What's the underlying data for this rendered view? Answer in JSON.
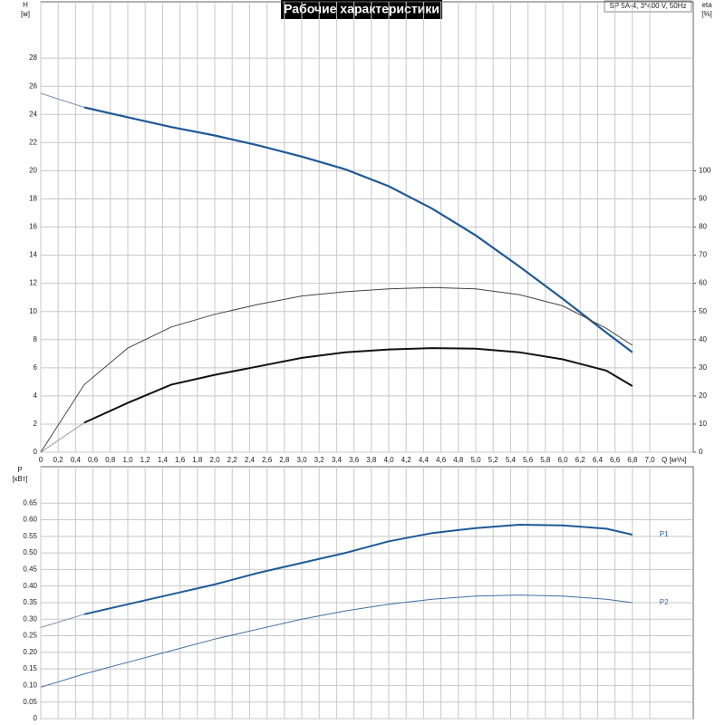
{
  "chart_data": [
    {
      "type": "line",
      "title": "Рабочие характеристики",
      "subtitle": "SP 5A-4, 3*400 V, 50Hz",
      "ylabel": "H",
      "ylabel_unit": "[м]",
      "y2label": "eta",
      "y2label_unit": "[%]",
      "xlabel": "Q [м³/ч]",
      "xlim": [
        0,
        7.5
      ],
      "ylim": [
        0,
        32
      ],
      "y2lim": [
        0,
        160
      ],
      "grid": true,
      "xticks": [
        0,
        {
          "value": 0.2,
          "label": "0,2"
        },
        {
          "value": 0.4,
          "label": "0,4"
        },
        {
          "value": 0.6,
          "label": "0,6"
        },
        {
          "value": 0.8,
          "label": "0,8"
        },
        {
          "value": 1.0,
          "label": "1,0"
        },
        {
          "value": 1.2,
          "label": "1,2"
        },
        {
          "value": 1.4,
          "label": "1,4"
        },
        {
          "value": 1.6,
          "label": "1,6"
        },
        {
          "value": 1.8,
          "label": "1,8"
        },
        {
          "value": 2.0,
          "label": "2,0"
        },
        {
          "value": 2.2,
          "label": "2,2"
        },
        {
          "value": 2.4,
          "label": "2,4"
        },
        {
          "value": 2.6,
          "label": "2,6"
        },
        {
          "value": 2.8,
          "label": "2,8"
        },
        {
          "value": 3.0,
          "label": "3,0"
        },
        {
          "value": 3.2,
          "label": "3,2"
        },
        {
          "value": 3.4,
          "label": "3,4"
        },
        {
          "value": 3.6,
          "label": "3,6"
        },
        {
          "value": 3.8,
          "label": "3,8"
        },
        {
          "value": 4.0,
          "label": "4,0"
        },
        {
          "value": 4.2,
          "label": "4,2"
        },
        {
          "value": 4.4,
          "label": "4,4"
        },
        {
          "value": 4.6,
          "label": "4,6"
        },
        {
          "value": 4.8,
          "label": "4,8"
        },
        {
          "value": 5.0,
          "label": "5,0"
        },
        {
          "value": 5.2,
          "label": "5,2"
        },
        {
          "value": 5.4,
          "label": "5,4"
        },
        {
          "value": 5.6,
          "label": "5,6"
        },
        {
          "value": 5.8,
          "label": "5,8"
        },
        {
          "value": 6.0,
          "label": "6,0"
        },
        {
          "value": 6.2,
          "label": "6,2"
        },
        {
          "value": 6.4,
          "label": "6,4"
        },
        {
          "value": 6.6,
          "label": "6,6"
        },
        {
          "value": 6.8,
          "label": "6,8"
        },
        {
          "value": 7.0,
          "label": "7,0"
        }
      ],
      "yticks": [
        0,
        2,
        4,
        6,
        8,
        10,
        12,
        14,
        16,
        18,
        20,
        22,
        24,
        26,
        28
      ],
      "y2ticks": [
        0,
        10,
        20,
        30,
        40,
        50,
        60,
        70,
        80,
        90,
        100
      ],
      "series": [
        {
          "color": "#7a92b0",
          "linewidth": 1,
          "x": [
            0,
            0.5
          ],
          "values": [
            25.5,
            24.5
          ]
        },
        {
          "color": "#1f5a96",
          "linewidth": 2.2,
          "x": [
            0.5,
            1.0,
            1.5,
            2.0,
            2.5,
            3.0,
            3.5,
            4.0,
            4.5,
            5.0,
            5.5,
            6.0,
            6.5,
            6.8
          ],
          "values": [
            24.5,
            23.8,
            23.1,
            22.5,
            21.8,
            21.0,
            20.1,
            18.9,
            17.3,
            15.4,
            13.2,
            10.9,
            8.5,
            7.1
          ]
        },
        {
          "color": "#444444",
          "linewidth": 1,
          "axis": "y2",
          "x": [
            0,
            0.5,
            1.0,
            1.5,
            2.0,
            2.5,
            3.0,
            3.5,
            4.0,
            4.5,
            5.0,
            5.5,
            6.0,
            6.5,
            6.8
          ],
          "values": [
            0,
            24,
            37,
            44.5,
            49,
            52.5,
            55.5,
            57,
            58,
            58.5,
            58,
            56,
            52,
            44,
            38
          ]
        },
        {
          "color": "#999999",
          "linewidth": 1,
          "axis": "y2",
          "x": [
            0,
            0.5
          ],
          "values": [
            0,
            10.5
          ]
        },
        {
          "color": "#111111",
          "linewidth": 2,
          "axis": "y2",
          "x": [
            0.5,
            1.0,
            1.5,
            2.0,
            2.5,
            3.0,
            3.5,
            4.0,
            4.5,
            5.0,
            5.5,
            6.0,
            6.5,
            6.8
          ],
          "values": [
            10.5,
            17.5,
            24,
            27.5,
            30.5,
            33.5,
            35.5,
            36.5,
            37,
            36.8,
            35.5,
            33,
            29,
            23.5
          ]
        }
      ]
    },
    {
      "type": "line",
      "ylabel": "P",
      "ylabel_unit": "[кВт]",
      "xlim": [
        0,
        7.5
      ],
      "ylim": [
        0,
        0.76
      ],
      "grid": true,
      "yticks": [
        0,
        0.05,
        {
          "value": 0.1,
          "label": "0.10"
        },
        0.15,
        {
          "value": 0.2,
          "label": "0.20"
        },
        0.25,
        {
          "value": 0.3,
          "label": "0.30"
        },
        0.35,
        {
          "value": 0.4,
          "label": "0.40"
        },
        0.45,
        {
          "value": 0.5,
          "label": "0.50"
        },
        0.55,
        {
          "value": 0.6,
          "label": "0.60"
        },
        0.65
      ],
      "series": [
        {
          "color": "#7a92b0",
          "linewidth": 1,
          "x": [
            0,
            0.5
          ],
          "values": [
            0.275,
            0.315
          ]
        },
        {
          "name": "P1",
          "color": "#1f5a96",
          "linewidth": 2,
          "x": [
            0.5,
            1.0,
            1.5,
            2.0,
            2.5,
            3.0,
            3.5,
            4.0,
            4.5,
            5.0,
            5.5,
            6.0,
            6.5,
            6.8
          ],
          "values": [
            0.315,
            0.345,
            0.375,
            0.405,
            0.44,
            0.47,
            0.5,
            0.535,
            0.56,
            0.575,
            0.585,
            0.583,
            0.573,
            0.555
          ]
        },
        {
          "name": "P2",
          "color": "#3f6fa5",
          "linewidth": 1,
          "x": [
            0,
            0.5,
            1.0,
            1.5,
            2.0,
            2.5,
            3.0,
            3.5,
            4.0,
            4.5,
            5.0,
            5.5,
            6.0,
            6.5,
            6.8
          ],
          "values": [
            0.095,
            0.135,
            0.17,
            0.205,
            0.24,
            0.27,
            0.3,
            0.325,
            0.345,
            0.36,
            0.37,
            0.373,
            0.37,
            0.36,
            0.35
          ]
        }
      ]
    }
  ]
}
